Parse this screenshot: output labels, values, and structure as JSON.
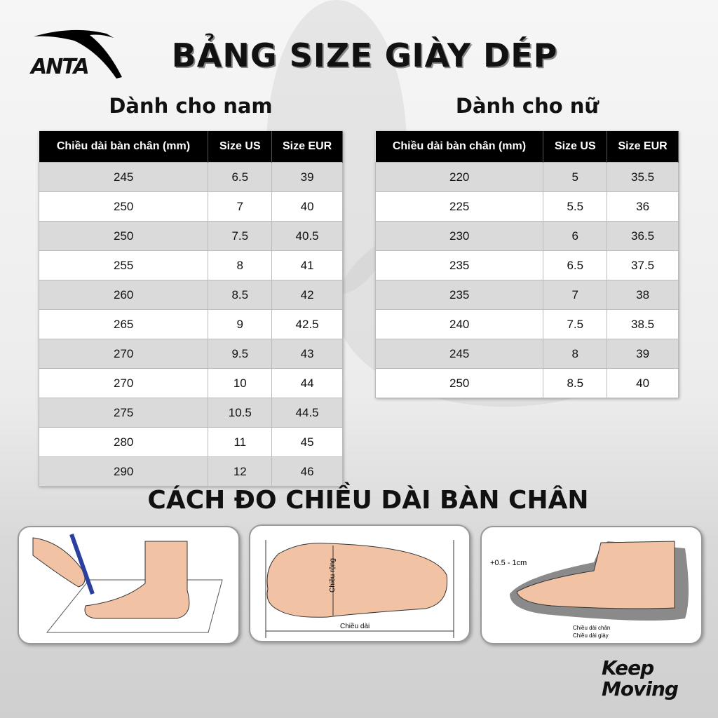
{
  "brand": {
    "logo_text": "ANTA",
    "slogan_line1": "Keep",
    "slogan_line2": "Moving"
  },
  "title": "BẢNG SIZE GIÀY DÉP",
  "men": {
    "heading": "Dành cho nam",
    "columns": [
      "Chiều dài bàn chân (mm)",
      "Size US",
      "Size EUR"
    ],
    "rows": [
      [
        "245",
        "6.5",
        "39"
      ],
      [
        "250",
        "7",
        "40"
      ],
      [
        "250",
        "7.5",
        "40.5"
      ],
      [
        "255",
        "8",
        "41"
      ],
      [
        "260",
        "8.5",
        "42"
      ],
      [
        "265",
        "9",
        "42.5"
      ],
      [
        "270",
        "9.5",
        "43"
      ],
      [
        "270",
        "10",
        "44"
      ],
      [
        "275",
        "10.5",
        "44.5"
      ],
      [
        "280",
        "11",
        "45"
      ],
      [
        "290",
        "12",
        "46"
      ]
    ]
  },
  "women": {
    "heading": "Dành cho nữ",
    "columns": [
      "Chiều dài bàn chân (mm)",
      "Size US",
      "Size EUR"
    ],
    "rows": [
      [
        "220",
        "5",
        "35.5"
      ],
      [
        "225",
        "5.5",
        "36"
      ],
      [
        "230",
        "6",
        "36.5"
      ],
      [
        "235",
        "6.5",
        "37.5"
      ],
      [
        "235",
        "7",
        "38"
      ],
      [
        "240",
        "7.5",
        "38.5"
      ],
      [
        "245",
        "8",
        "39"
      ],
      [
        "250",
        "8.5",
        "40"
      ]
    ]
  },
  "measure": {
    "heading": "CÁCH ĐO CHIỀU DÀI BÀN CHÂN",
    "foot_width_label": "Chiều rộng",
    "foot_length_label": "Chiều dài",
    "allowance_label": "+0.5 - 1cm",
    "foot_length_in_shoe": "Chiều dài chân",
    "shoe_length": "Chiều dài giày"
  }
}
